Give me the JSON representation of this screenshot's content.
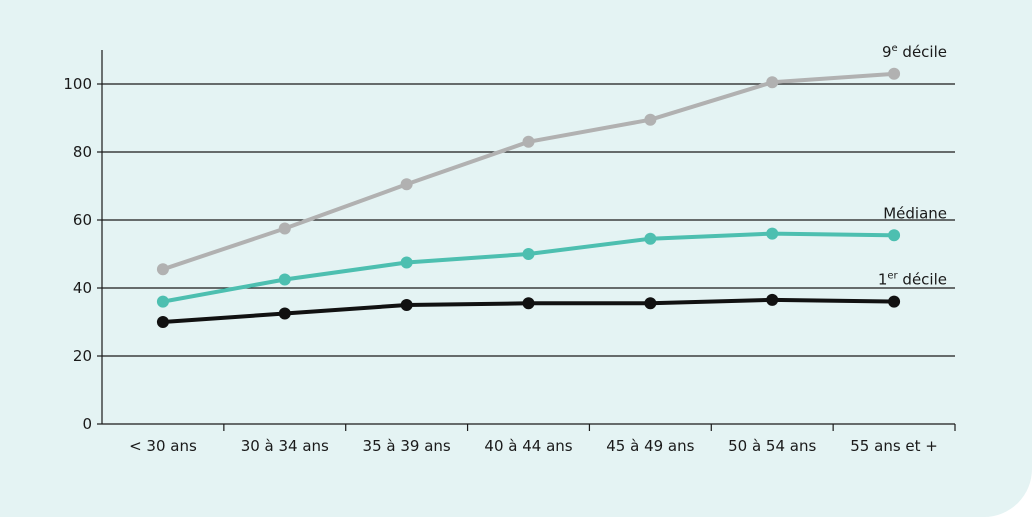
{
  "chart_data": {
    "type": "line",
    "title": "",
    "xlabel": "",
    "ylabel": "",
    "categories": [
      "< 30 ans",
      "30 à 34 ans",
      "35 à 39 ans",
      "40 à 44 ans",
      "45 à 49 ans",
      "50 à 54 ans",
      "55 ans et +"
    ],
    "ylim": [
      0,
      110
    ],
    "yticks": [
      0,
      20,
      40,
      60,
      80,
      100
    ],
    "grid": true,
    "series": [
      {
        "name": "9e décile",
        "label_main": "9",
        "label_sup": "e",
        "label_rest": " décile",
        "color": "#b1b1b1",
        "values": [
          45.5,
          57.5,
          70.5,
          83,
          89.5,
          100.5,
          103
        ]
      },
      {
        "name": "Médiane",
        "label_main": "Médiane",
        "label_sup": "",
        "label_rest": "",
        "color": "#4dbfb0",
        "values": [
          36,
          42.5,
          47.5,
          50,
          54.5,
          56,
          55.5
        ]
      },
      {
        "name": "1er décile",
        "label_main": "1",
        "label_sup": "er",
        "label_rest": " décile",
        "color": "#111111",
        "values": [
          30,
          32.5,
          35,
          35.5,
          35.5,
          36.5,
          36
        ]
      }
    ]
  }
}
